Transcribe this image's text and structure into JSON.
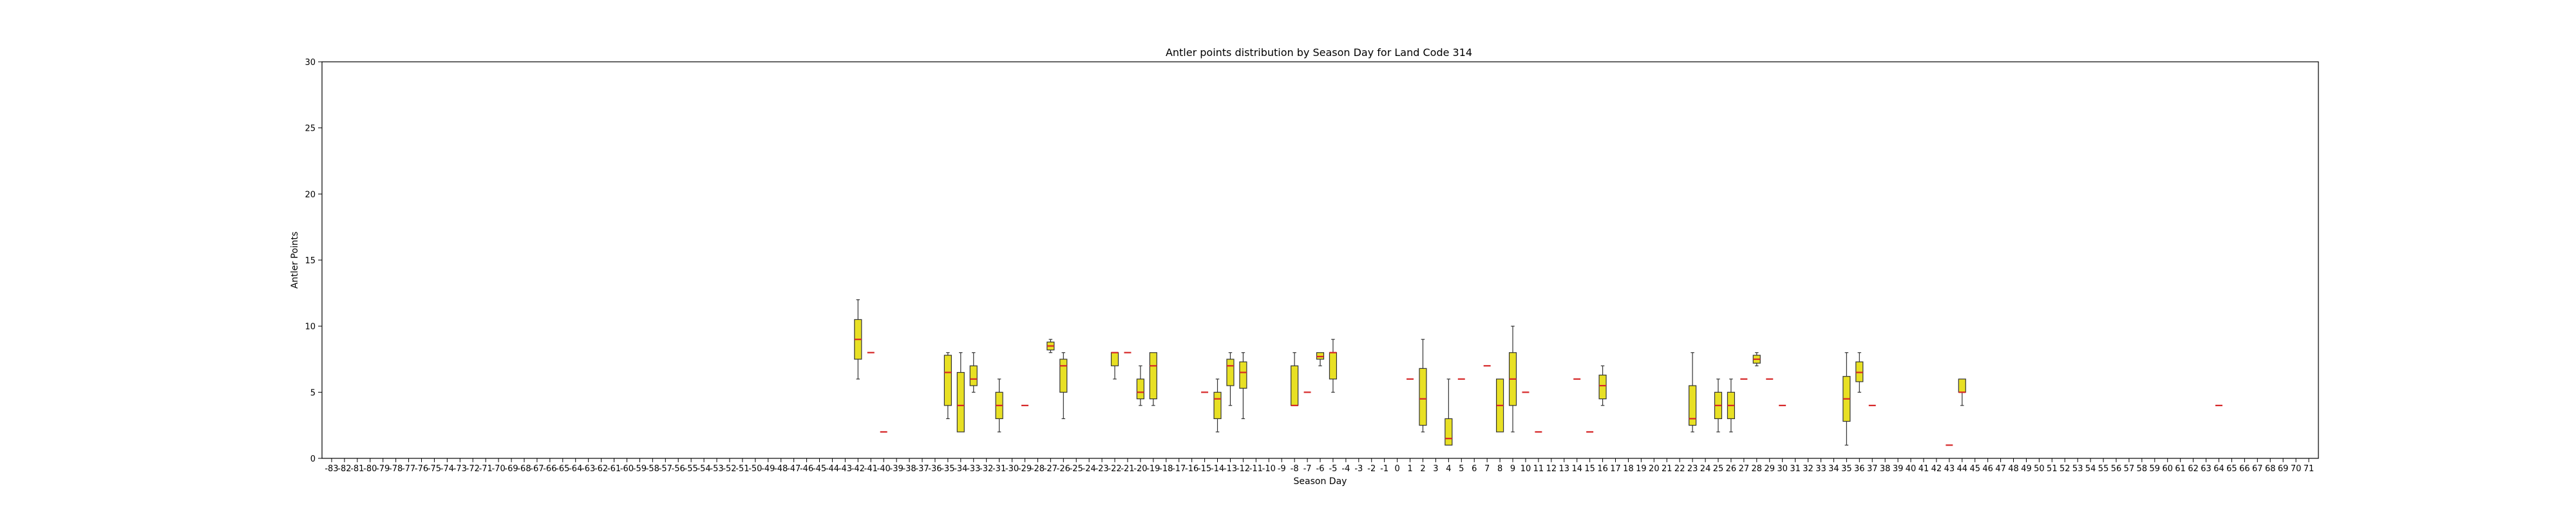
{
  "chart_data": {
    "type": "boxplot",
    "title": "Antler points distribution by Season Day for Land Code 314",
    "xlabel": "Season Day",
    "ylabel": "Antler Points",
    "x_range": [
      -83,
      71
    ],
    "ylim": [
      0,
      30
    ],
    "yticks": [
      0,
      5,
      10,
      15,
      20,
      25,
      30
    ],
    "grid": false,
    "colors": {
      "box_fill": "#e8e024",
      "box_edge": "#333333",
      "median": "#d62728",
      "axis": "#000000"
    },
    "boxes": [
      {
        "x": -42,
        "whislo": 6,
        "q1": 7.5,
        "med": 9,
        "q3": 10.5,
        "whishi": 12
      },
      {
        "x": -41,
        "whislo": 8,
        "q1": 8,
        "med": 8,
        "q3": 8,
        "whishi": 8
      },
      {
        "x": -40,
        "whislo": 2,
        "q1": 2,
        "med": 2,
        "q3": 2,
        "whishi": 2
      },
      {
        "x": -35,
        "whislo": 3,
        "q1": 4,
        "med": 6.5,
        "q3": 7.8,
        "whishi": 8
      },
      {
        "x": -34,
        "whislo": 2,
        "q1": 2,
        "med": 4,
        "q3": 6.5,
        "whishi": 8
      },
      {
        "x": -33,
        "whislo": 5,
        "q1": 5.5,
        "med": 6,
        "q3": 7,
        "whishi": 8
      },
      {
        "x": -31,
        "whislo": 2,
        "q1": 3,
        "med": 4,
        "q3": 5,
        "whishi": 6
      },
      {
        "x": -29,
        "whislo": 4,
        "q1": 4,
        "med": 4,
        "q3": 4,
        "whishi": 4
      },
      {
        "x": -27,
        "whislo": 8,
        "q1": 8.2,
        "med": 8.5,
        "q3": 8.8,
        "whishi": 9
      },
      {
        "x": -26,
        "whislo": 3,
        "q1": 5,
        "med": 7,
        "q3": 7.5,
        "whishi": 8
      },
      {
        "x": -22,
        "whislo": 6,
        "q1": 7,
        "med": 8,
        "q3": 8,
        "whishi": 8
      },
      {
        "x": -21,
        "whislo": 8,
        "q1": 8,
        "med": 8,
        "q3": 8,
        "whishi": 8
      },
      {
        "x": -20,
        "whislo": 4,
        "q1": 4.5,
        "med": 5,
        "q3": 6,
        "whishi": 7
      },
      {
        "x": -19,
        "whislo": 4,
        "q1": 4.5,
        "med": 7,
        "q3": 8,
        "whishi": 8
      },
      {
        "x": -15,
        "whislo": 5,
        "q1": 5,
        "med": 5,
        "q3": 5,
        "whishi": 5
      },
      {
        "x": -14,
        "whislo": 2,
        "q1": 3,
        "med": 4.5,
        "q3": 5,
        "whishi": 6
      },
      {
        "x": -13,
        "whislo": 4,
        "q1": 5.5,
        "med": 7,
        "q3": 7.5,
        "whishi": 8
      },
      {
        "x": -12,
        "whislo": 3,
        "q1": 5.3,
        "med": 6.5,
        "q3": 7.3,
        "whishi": 8
      },
      {
        "x": -8,
        "whislo": 4,
        "q1": 4,
        "med": 4,
        "q3": 7,
        "whishi": 8
      },
      {
        "x": -7,
        "whislo": 5,
        "q1": 5,
        "med": 5,
        "q3": 5,
        "whishi": 5
      },
      {
        "x": -6,
        "whislo": 7,
        "q1": 7.5,
        "med": 7.7,
        "q3": 8,
        "whishi": 8
      },
      {
        "x": -5,
        "whislo": 5,
        "q1": 6,
        "med": 8,
        "q3": 8,
        "whishi": 9
      },
      {
        "x": 1,
        "whislo": 6,
        "q1": 6,
        "med": 6,
        "q3": 6,
        "whishi": 6
      },
      {
        "x": 2,
        "whislo": 2,
        "q1": 2.5,
        "med": 4.5,
        "q3": 6.8,
        "whishi": 9
      },
      {
        "x": 4,
        "whislo": 1,
        "q1": 1,
        "med": 1.5,
        "q3": 3,
        "whishi": 6
      },
      {
        "x": 5,
        "whislo": 6,
        "q1": 6,
        "med": 6,
        "q3": 6,
        "whishi": 6
      },
      {
        "x": 7,
        "whislo": 7,
        "q1": 7,
        "med": 7,
        "q3": 7,
        "whishi": 7
      },
      {
        "x": 8,
        "whislo": 2,
        "q1": 2,
        "med": 4,
        "q3": 6,
        "whishi": 6
      },
      {
        "x": 9,
        "whislo": 2,
        "q1": 4,
        "med": 6,
        "q3": 8,
        "whishi": 10
      },
      {
        "x": 10,
        "whislo": 5,
        "q1": 5,
        "med": 5,
        "q3": 5,
        "whishi": 5
      },
      {
        "x": 11,
        "whislo": 2,
        "q1": 2,
        "med": 2,
        "q3": 2,
        "whishi": 2
      },
      {
        "x": 14,
        "whislo": 6,
        "q1": 6,
        "med": 6,
        "q3": 6,
        "whishi": 6
      },
      {
        "x": 15,
        "whislo": 2,
        "q1": 2,
        "med": 2,
        "q3": 2,
        "whishi": 2
      },
      {
        "x": 16,
        "whislo": 4,
        "q1": 4.5,
        "med": 5.5,
        "q3": 6.3,
        "whishi": 7
      },
      {
        "x": 23,
        "whislo": 2,
        "q1": 2.5,
        "med": 3,
        "q3": 5.5,
        "whishi": 8
      },
      {
        "x": 25,
        "whislo": 2,
        "q1": 3,
        "med": 4,
        "q3": 5,
        "whishi": 6
      },
      {
        "x": 26,
        "whislo": 2,
        "q1": 3,
        "med": 4,
        "q3": 5,
        "whishi": 6
      },
      {
        "x": 27,
        "whislo": 6,
        "q1": 6,
        "med": 6,
        "q3": 6,
        "whishi": 6
      },
      {
        "x": 28,
        "whislo": 7,
        "q1": 7.2,
        "med": 7.5,
        "q3": 7.8,
        "whishi": 8
      },
      {
        "x": 29,
        "whislo": 6,
        "q1": 6,
        "med": 6,
        "q3": 6,
        "whishi": 6
      },
      {
        "x": 30,
        "whislo": 4,
        "q1": 4,
        "med": 4,
        "q3": 4,
        "whishi": 4
      },
      {
        "x": 35,
        "whislo": 1,
        "q1": 2.8,
        "med": 4.5,
        "q3": 6.2,
        "whishi": 8
      },
      {
        "x": 36,
        "whislo": 5,
        "q1": 5.8,
        "med": 6.5,
        "q3": 7.3,
        "whishi": 8
      },
      {
        "x": 37,
        "whislo": 4,
        "q1": 4,
        "med": 4,
        "q3": 4,
        "whishi": 4
      },
      {
        "x": 43,
        "whislo": 1,
        "q1": 1,
        "med": 1,
        "q3": 1,
        "whishi": 1
      },
      {
        "x": 44,
        "whislo": 4,
        "q1": 5,
        "med": 5,
        "q3": 6,
        "whishi": 6
      },
      {
        "x": 64,
        "whislo": 4,
        "q1": 4,
        "med": 4,
        "q3": 4,
        "whishi": 4
      }
    ]
  }
}
